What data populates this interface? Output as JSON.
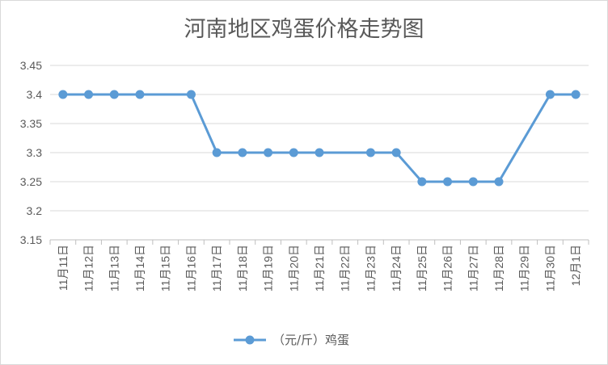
{
  "chart_data": {
    "type": "line",
    "title": "河南地区鸡蛋价格走势图",
    "xlabel": "",
    "ylabel": "",
    "categories": [
      "11月11日",
      "11月12日",
      "11月13日",
      "11月14日",
      "11月15日",
      "11月16日",
      "11月17日",
      "11月18日",
      "11月19日",
      "11月20日",
      "11月21日",
      "11月22日",
      "11月23日",
      "11月24日",
      "11月25日",
      "11月26日",
      "11月27日",
      "11月28日",
      "11月29日",
      "11月30日",
      "12月1日"
    ],
    "series": [
      {
        "name": "（元/斤）鸡蛋",
        "values": [
          3.4,
          3.4,
          3.4,
          3.4,
          null,
          3.4,
          3.3,
          3.3,
          3.3,
          3.3,
          3.3,
          null,
          3.3,
          3.3,
          3.25,
          3.25,
          3.25,
          3.25,
          null,
          3.4,
          3.4
        ],
        "connect_gaps": true,
        "color": "#5b9bd5"
      }
    ],
    "ylim": [
      3.15,
      3.45
    ],
    "yticks": [
      "3.15",
      "3.2",
      "3.25",
      "3.3",
      "3.35",
      "3.4",
      "3.45"
    ],
    "grid": true,
    "legend": "bottom"
  }
}
